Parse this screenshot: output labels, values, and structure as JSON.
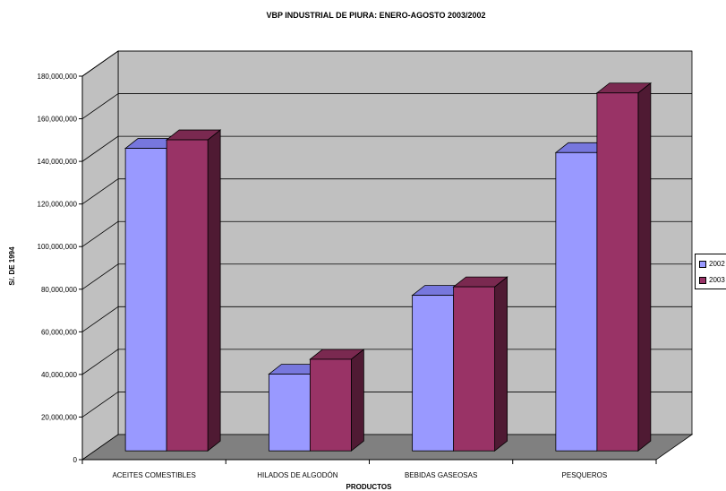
{
  "chart_data": {
    "type": "bar",
    "title": "VBP INDUSTRIAL DE PIURA: ENERO-AGOSTO 2003/2002",
    "xlabel": "PRODUCTOS",
    "ylabel": "S/. DE 1994",
    "ylim": [
      0,
      180000000
    ],
    "y_ticks": [
      "0",
      "20,000,000",
      "40,000,000",
      "60,000,000",
      "80,000,000",
      "100,000,000",
      "120,000,000",
      "140,000,000",
      "160,000,000",
      "180,000,000"
    ],
    "categories": [
      "ACEITES COMESTIBLES",
      "HILADOS DE ALGODÓN",
      "BEBIDAS GASEOSAS",
      "PESQUEROS"
    ],
    "series": [
      {
        "name": "2002",
        "color": "#9999FF",
        "side": "#6666CC",
        "top": "#7777DD",
        "values": [
          142000000,
          36000000,
          73000000,
          140000000
        ]
      },
      {
        "name": "2003",
        "color": "#993366",
        "side": "#4F1A33",
        "top": "#7A2950",
        "values": [
          146000000,
          43000000,
          77000000,
          168000000
        ]
      }
    ],
    "legend_position": "right",
    "grid": true
  }
}
